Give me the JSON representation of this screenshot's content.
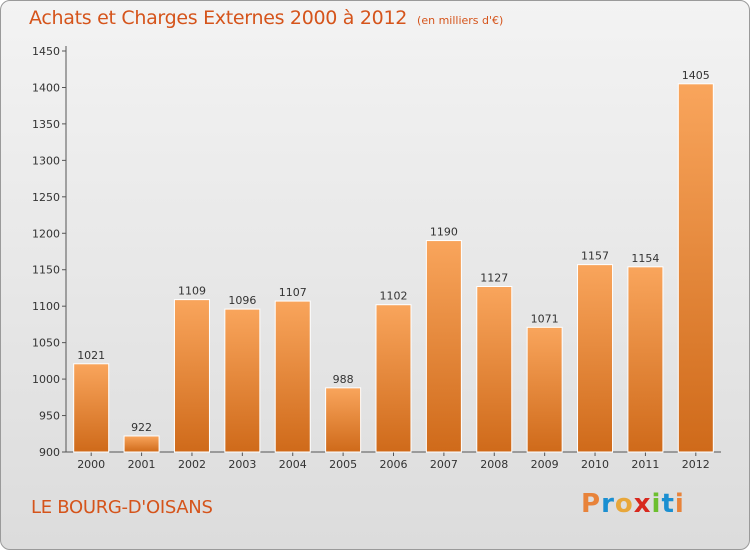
{
  "title": "Achats et Charges Externes 2000 à 2012",
  "unit": "(en milliers d'€)",
  "commune": "LE BOURG-D'OISANS",
  "logo": {
    "letters": [
      "P",
      "r",
      "o",
      "x",
      "i",
      "t",
      "i"
    ],
    "colors": [
      "#e8833a",
      "#1a8fd1",
      "#e8a73a",
      "#d8281e",
      "#6cbf2f",
      "#1a8fd1",
      "#e8833a"
    ]
  },
  "chart_data": {
    "type": "bar",
    "title": "Achats et Charges Externes 2000 à 2012",
    "subtitle": "(en milliers d'€)",
    "xlabel": "",
    "ylabel": "",
    "categories": [
      "2000",
      "2001",
      "2002",
      "2003",
      "2004",
      "2005",
      "2006",
      "2007",
      "2008",
      "2009",
      "2010",
      "2011",
      "2012"
    ],
    "values": [
      1021,
      922,
      1109,
      1096,
      1107,
      988,
      1102,
      1190,
      1127,
      1071,
      1157,
      1154,
      1405
    ],
    "ylim": [
      900,
      1450
    ],
    "yticks": [
      900,
      950,
      1000,
      1050,
      1100,
      1150,
      1200,
      1250,
      1300,
      1350,
      1400,
      1450
    ],
    "grid": false,
    "bar_color": "#e8833a"
  }
}
